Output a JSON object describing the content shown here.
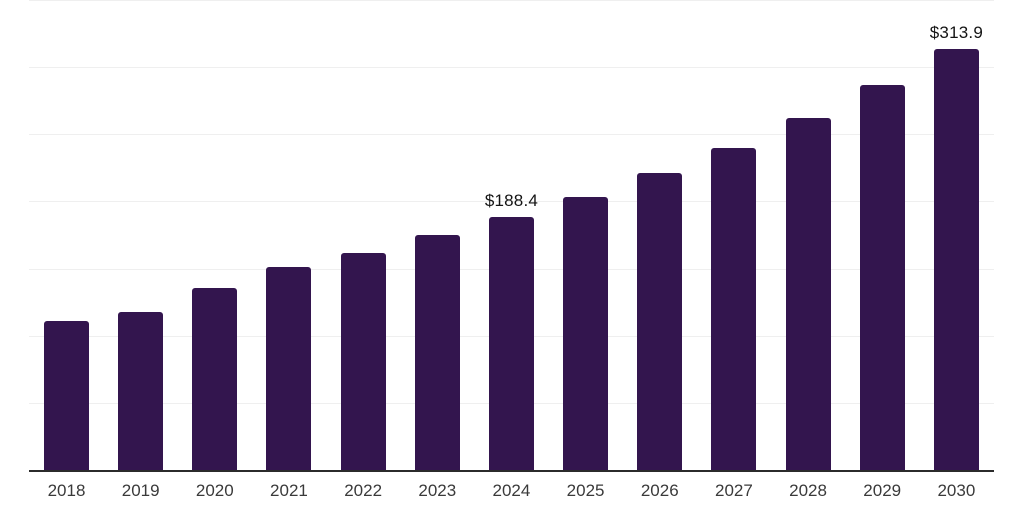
{
  "chart_data": {
    "type": "bar",
    "title": "",
    "categories": [
      "2018",
      "2019",
      "2020",
      "2021",
      "2022",
      "2023",
      "2024",
      "2025",
      "2026",
      "2027",
      "2028",
      "2029",
      "2030"
    ],
    "values": [
      111.0,
      118.0,
      135.5,
      151.0,
      162.0,
      174.8,
      188.4,
      203.4,
      221.5,
      240.0,
      262.0,
      287.0,
      313.9
    ],
    "bar_labels": [
      "",
      "",
      "",
      "",
      "",
      "",
      "$188.4",
      "",
      "",
      "",
      "",
      "",
      "$313.9"
    ],
    "xlabel": "",
    "ylabel": "",
    "ylim": [
      0,
      350
    ],
    "grid_interval": 50,
    "grid": true,
    "y_tick_labels_shown": false,
    "legend_position": "none",
    "colors": {
      "bar": "#33154E",
      "gridline": "#efefef",
      "axis_line": "#2b2b2b",
      "tick_label": "#3a3a3a",
      "data_label": "#141414",
      "background": "#ffffff"
    }
  }
}
